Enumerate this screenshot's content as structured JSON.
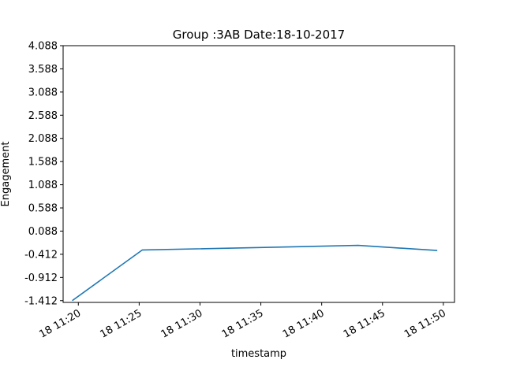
{
  "chart_data": {
    "type": "line",
    "title": "Group :3AB Date:18-10-2017",
    "xlabel": "timestamp",
    "ylabel": "Engagement",
    "x_date": "2017-10-18",
    "xlim": [
      "2017-10-18 11:18:45",
      "2017-10-18 11:50:55"
    ],
    "ylim": [
      -1.45,
      4.088
    ],
    "x_ticks": [
      {
        "value": "2017-10-18 11:20",
        "label": "18 11:20"
      },
      {
        "value": "2017-10-18 11:25",
        "label": "18 11:25"
      },
      {
        "value": "2017-10-18 11:30",
        "label": "18 11:30"
      },
      {
        "value": "2017-10-18 11:35",
        "label": "18 11:35"
      },
      {
        "value": "2017-10-18 11:40",
        "label": "18 11:40"
      },
      {
        "value": "2017-10-18 11:45",
        "label": "18 11:45"
      },
      {
        "value": "2017-10-18 11:50",
        "label": "18 11:50"
      }
    ],
    "y_ticks": [
      {
        "value": -1.412,
        "label": "-1.412"
      },
      {
        "value": -0.912,
        "label": "-0.912"
      },
      {
        "value": -0.412,
        "label": "-0.412"
      },
      {
        "value": 0.088,
        "label": "0.088"
      },
      {
        "value": 0.588,
        "label": "0.588"
      },
      {
        "value": 1.088,
        "label": "1.088"
      },
      {
        "value": 1.588,
        "label": "1.588"
      },
      {
        "value": 2.088,
        "label": "2.088"
      },
      {
        "value": 2.588,
        "label": "2.588"
      },
      {
        "value": 3.088,
        "label": "3.088"
      },
      {
        "value": 3.588,
        "label": "3.588"
      },
      {
        "value": 4.088,
        "label": "4.088"
      }
    ],
    "series": [
      {
        "color": "#1f77b4",
        "points": [
          {
            "x": "2017-10-18 11:19:30",
            "y": -1.412
          },
          {
            "x": "2017-10-18 11:25:15",
            "y": -0.32
          },
          {
            "x": "2017-10-18 11:43:00",
            "y": -0.22
          },
          {
            "x": "2017-10-18 11:49:30",
            "y": -0.33
          }
        ]
      }
    ],
    "grid": false,
    "legend": "none"
  }
}
